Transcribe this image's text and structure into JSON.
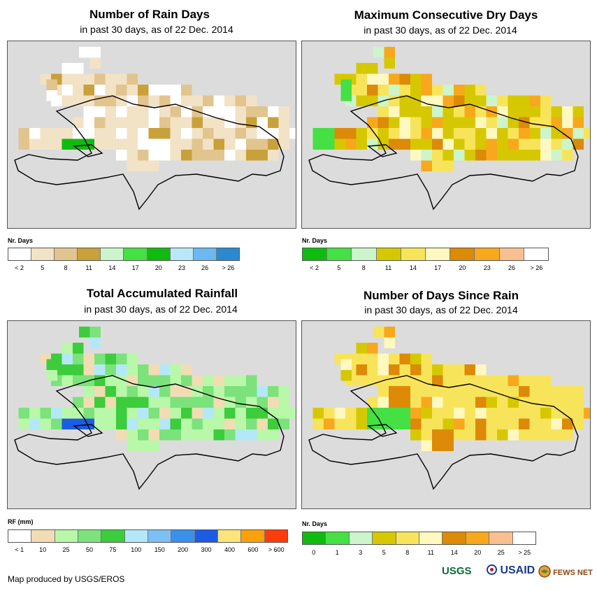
{
  "panels": [
    {
      "title": "Number of Rain Days",
      "subtitle": "in past 30 days, as of 22 Dec. 2014",
      "legend_title": "Nr. Days",
      "legend_colors": [
        "#ffffff",
        "#f2e2c6",
        "#e2c48e",
        "#c9a13a",
        "#ccf5cc",
        "#44e044",
        "#10bb10",
        "#b8e8f8",
        "#6cb8f0",
        "#2a8ad0"
      ],
      "legend_labels": [
        "< 2",
        "5",
        "8",
        "11",
        "14",
        "17",
        "20",
        "23",
        "26",
        "> 26"
      ]
    },
    {
      "title": "Maximum Consecutive Dry Days",
      "subtitle": "in past 30 days, as of 22 Dec. 2014",
      "legend_title": "Nr. Days",
      "legend_colors": [
        "#10bb10",
        "#44e044",
        "#ccf5cc",
        "#d6c800",
        "#f8e45a",
        "#fff8c0",
        "#dc8a08",
        "#f8a81c",
        "#f8c090",
        "#ffffff"
      ],
      "legend_labels": [
        "< 2",
        "5",
        "8",
        "11",
        "14",
        "17",
        "20",
        "23",
        "26",
        "> 26"
      ]
    },
    {
      "title": "Total Accumulated Rainfall",
      "subtitle": "in past 30 days, as of 22 Dec. 2014",
      "legend_title": "RF (mm)",
      "legend_colors": [
        "#ffffff",
        "#f2dcb4",
        "#b8f8a8",
        "#7ce27c",
        "#3ccc3c",
        "#b4e8f8",
        "#7cc0f4",
        "#3c90ec",
        "#1c5ce4",
        "#fce47c",
        "#fca00c",
        "#fc3c0c"
      ],
      "legend_labels": [
        "< 1",
        "10",
        "25",
        "50",
        "75",
        "100",
        "150",
        "200",
        "300",
        "400",
        "600",
        "> 600"
      ]
    },
    {
      "title": "Number of Days Since Rain",
      "subtitle": "in past 30 days, as of 22 Dec. 2014",
      "legend_title": "Nr. Days",
      "legend_colors": [
        "#10bb10",
        "#44e044",
        "#ccf5cc",
        "#d6c800",
        "#f8e45a",
        "#fff8c0",
        "#dc8a08",
        "#f8a81c",
        "#f8c090",
        "#ffffff"
      ],
      "legend_labels": [
        "0",
        "1",
        "3",
        "5",
        "8",
        "11",
        "14",
        "20",
        "25",
        "> 25"
      ]
    }
  ],
  "credit": "Map produced by USGS/EROS",
  "logos": {
    "usgs": "USGS",
    "usaid": "USAID",
    "fewsnet": "FEWS NET"
  }
}
